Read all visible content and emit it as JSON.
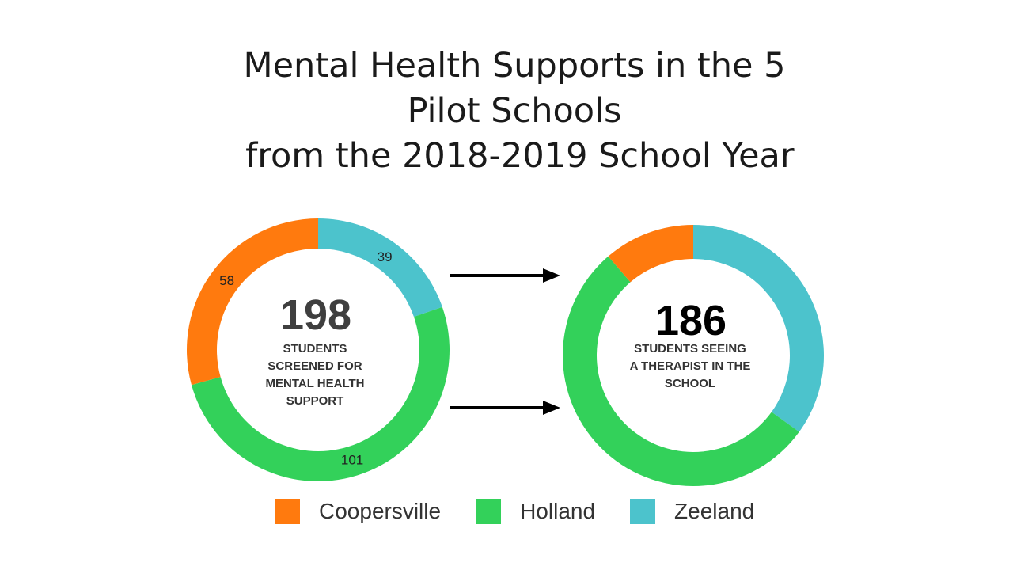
{
  "title_lines": [
    "Mental Health Supports in the 5",
    "Pilot Schools",
    " from the 2018-2019 School Year"
  ],
  "colors": {
    "Coopersville": "#ff7a0e",
    "Holland": "#33d15a",
    "Zeeland": "#4cc3cc",
    "arrow": "#000000"
  },
  "chart_data": [
    {
      "type": "pie",
      "variant": "donut",
      "center_value": "198",
      "center_label": [
        "STUDENTS",
        "SCREENED FOR",
        "MENTAL HEALTH",
        "SUPPORT"
      ],
      "categories": [
        "Zeeland",
        "Holland",
        "Coopersville"
      ],
      "values": [
        39,
        101,
        58
      ],
      "data_labels": [
        "39",
        "101",
        "58"
      ]
    },
    {
      "type": "pie",
      "variant": "donut",
      "center_value": "186",
      "center_label": [
        "STUDENTS SEEING",
        "A THERAPIST IN  THE",
        "SCHOOL"
      ],
      "categories": [
        "Zeeland",
        "Holland",
        "Coopersville"
      ],
      "values": [
        65,
        100,
        21
      ],
      "data_labels": [
        "",
        "",
        ""
      ]
    }
  ],
  "legend": [
    {
      "label": "Coopersville",
      "color": "#ff7a0e"
    },
    {
      "label": "Holland",
      "color": "#33d15a"
    },
    {
      "label": "Zeeland",
      "color": "#4cc3cc"
    }
  ]
}
